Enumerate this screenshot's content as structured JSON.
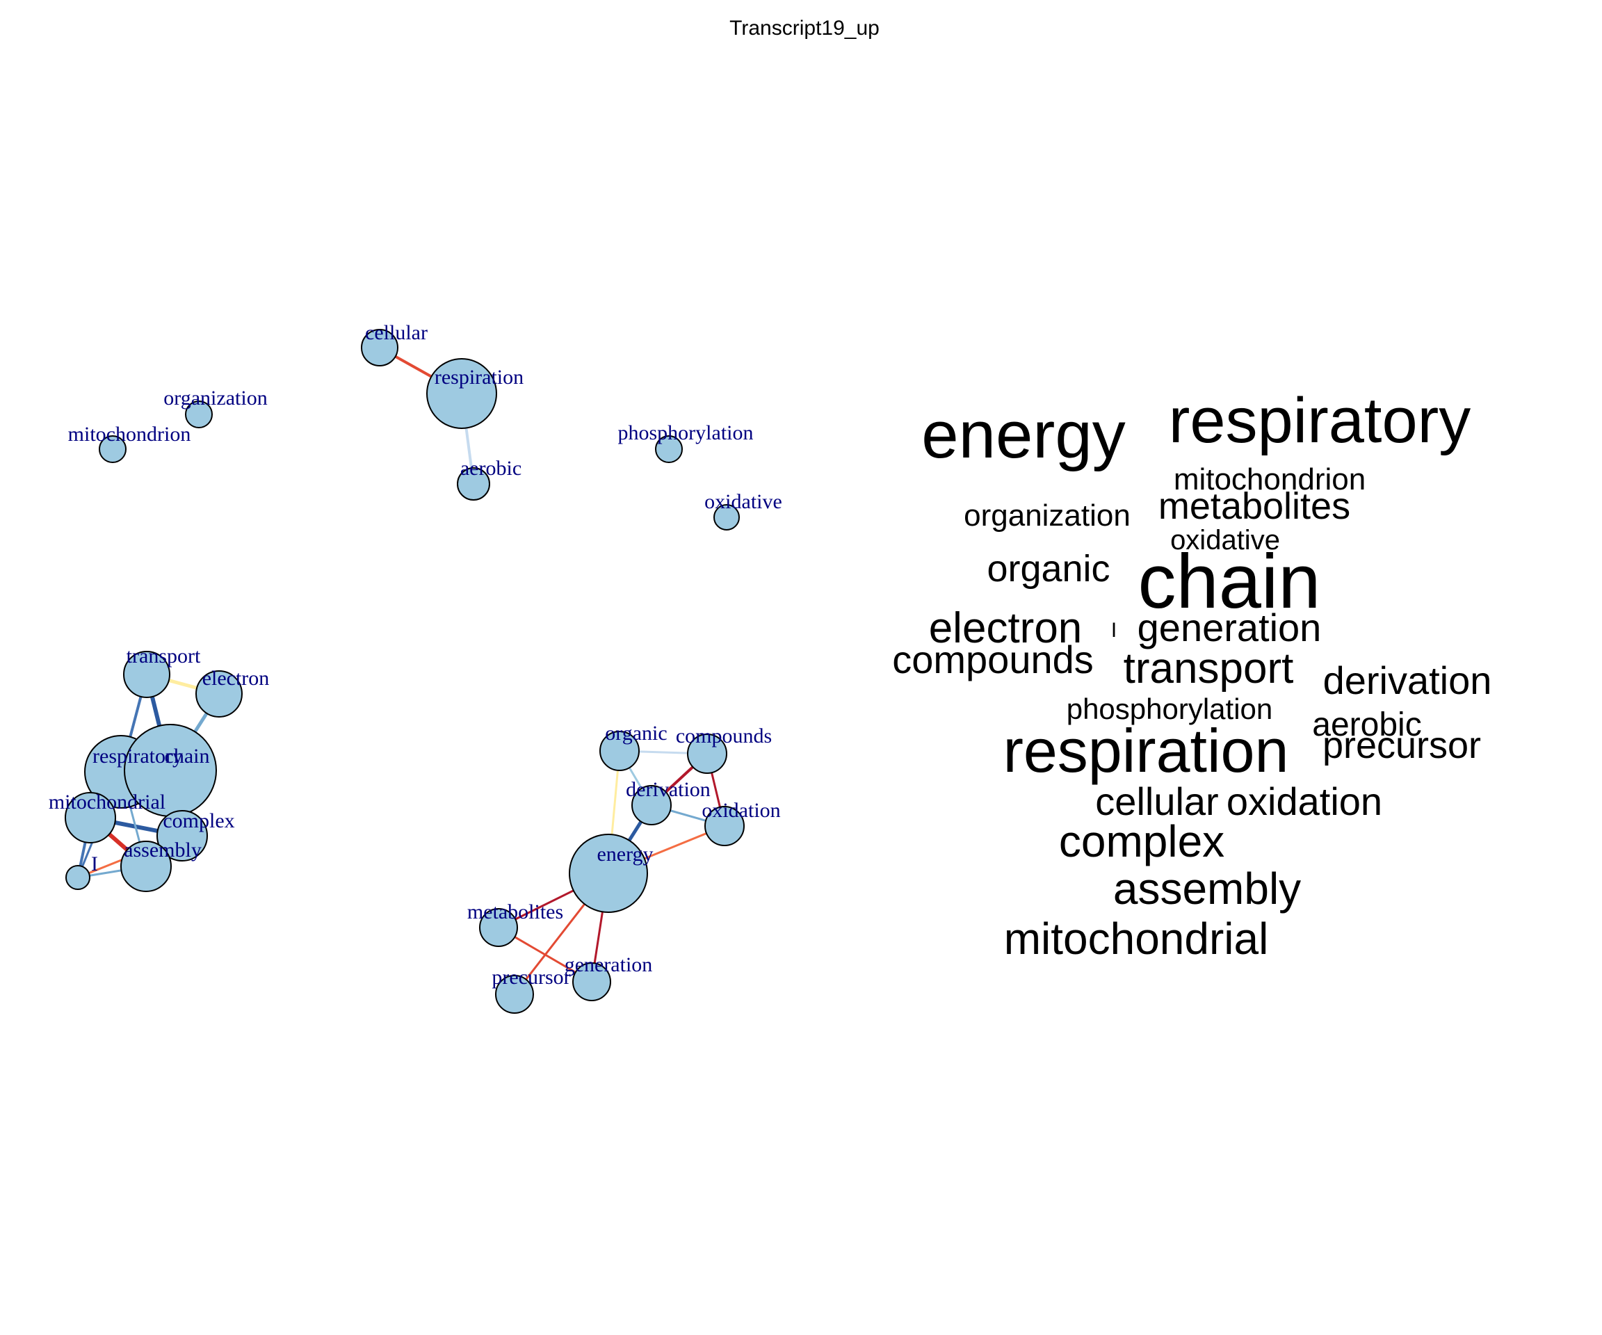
{
  "title": "Transcript19_up",
  "network": {
    "nodes": [
      {
        "id": "cellular",
        "label": "cellular",
        "weight": 1
      },
      {
        "id": "respiration",
        "label": "respiration",
        "weight": 4
      },
      {
        "id": "aerobic",
        "label": "aerobic",
        "weight": 1
      },
      {
        "id": "organization",
        "label": "organization",
        "weight": 1
      },
      {
        "id": "mitochondrion",
        "label": "mitochondrion",
        "weight": 1
      },
      {
        "id": "phosphorylation",
        "label": "phosphorylation",
        "weight": 0.8
      },
      {
        "id": "oxidative",
        "label": "oxidative",
        "weight": 0.8
      },
      {
        "id": "transport",
        "label": "transport",
        "weight": 2
      },
      {
        "id": "electron",
        "label": "electron",
        "weight": 2
      },
      {
        "id": "respiratory",
        "label": "respiratory",
        "weight": 4
      },
      {
        "id": "chain",
        "label": "chain",
        "weight": 6
      },
      {
        "id": "mitochondrial",
        "label": "mitochondrial",
        "weight": 2.5
      },
      {
        "id": "complex",
        "label": "complex",
        "weight": 2.5
      },
      {
        "id": "assembly",
        "label": "assembly",
        "weight": 2.5
      },
      {
        "id": "I",
        "label": "I",
        "weight": 0.6
      },
      {
        "id": "organic",
        "label": "organic",
        "weight": 1.5
      },
      {
        "id": "compounds",
        "label": "compounds",
        "weight": 1.5
      },
      {
        "id": "derivation",
        "label": "derivation",
        "weight": 1.5
      },
      {
        "id": "oxidation",
        "label": "oxidation",
        "weight": 1.5
      },
      {
        "id": "energy",
        "label": "energy",
        "weight": 5
      },
      {
        "id": "metabolites",
        "label": "metabolites",
        "weight": 1.5
      },
      {
        "id": "precursor",
        "label": "precursor",
        "weight": 1.5
      },
      {
        "id": "generation",
        "label": "generation",
        "weight": 1.5
      }
    ],
    "edges": [
      {
        "source": "cellular",
        "target": "respiration",
        "color": "#e34a33",
        "width": 4
      },
      {
        "source": "respiration",
        "target": "aerobic",
        "color": "#c6dbef",
        "width": 4
      },
      {
        "source": "transport",
        "target": "electron",
        "color": "#ffeda0",
        "width": 5
      },
      {
        "source": "transport",
        "target": "chain",
        "color": "#2c5aa0",
        "width": 6
      },
      {
        "source": "transport",
        "target": "respiratory",
        "color": "#4575b4",
        "width": 4
      },
      {
        "source": "electron",
        "target": "chain",
        "color": "#74a9cf",
        "width": 5
      },
      {
        "source": "respiratory",
        "target": "chain",
        "color": "#2c5aa0",
        "width": 5
      },
      {
        "source": "mitochondrial",
        "target": "respiratory",
        "color": "#4575b4",
        "width": 4
      },
      {
        "source": "mitochondrial",
        "target": "complex",
        "color": "#2c5aa0",
        "width": 6
      },
      {
        "source": "mitochondrial",
        "target": "assembly",
        "color": "#d73027",
        "width": 6
      },
      {
        "source": "mitochondrial",
        "target": "I",
        "color": "#4575b4",
        "width": 4
      },
      {
        "source": "complex",
        "target": "assembly",
        "color": "#2c5aa0",
        "width": 5
      },
      {
        "source": "complex",
        "target": "chain",
        "color": "#4575b4",
        "width": 4
      },
      {
        "source": "respiratory",
        "target": "I",
        "color": "#4575b4",
        "width": 3
      },
      {
        "source": "assembly",
        "target": "I",
        "color": "#74a9cf",
        "width": 3
      },
      {
        "source": "complex",
        "target": "I",
        "color": "#f46d43",
        "width": 3
      },
      {
        "source": "respiratory",
        "target": "assembly",
        "color": "#74a9cf",
        "width": 3
      },
      {
        "source": "organic",
        "target": "compounds",
        "color": "#c6dbef",
        "width": 3
      },
      {
        "source": "organic",
        "target": "derivation",
        "color": "#9ecae1",
        "width": 3
      },
      {
        "source": "organic",
        "target": "energy",
        "color": "#ffeda0",
        "width": 3
      },
      {
        "source": "compounds",
        "target": "derivation",
        "color": "#b2182b",
        "width": 4
      },
      {
        "source": "compounds",
        "target": "oxidation",
        "color": "#b2182b",
        "width": 3
      },
      {
        "source": "derivation",
        "target": "oxidation",
        "color": "#74a9cf",
        "width": 3
      },
      {
        "source": "derivation",
        "target": "energy",
        "color": "#2c5aa0",
        "width": 5
      },
      {
        "source": "oxidation",
        "target": "energy",
        "color": "#f46d43",
        "width": 3
      },
      {
        "source": "energy",
        "target": "metabolites",
        "color": "#b2182b",
        "width": 3
      },
      {
        "source": "energy",
        "target": "precursor",
        "color": "#e34a33",
        "width": 3
      },
      {
        "source": "energy",
        "target": "generation",
        "color": "#b2182b",
        "width": 3
      },
      {
        "source": "metabolites",
        "target": "generation",
        "color": "#e34a33",
        "width": 3
      }
    ]
  },
  "wordcloud": [
    {
      "text": "chain",
      "size": 110
    },
    {
      "text": "energy",
      "size": 96
    },
    {
      "text": "respiratory",
      "size": 92
    },
    {
      "text": "respiration",
      "size": 88
    },
    {
      "text": "complex",
      "size": 64
    },
    {
      "text": "assembly",
      "size": 64
    },
    {
      "text": "mitochondrial",
      "size": 64
    },
    {
      "text": "transport",
      "size": 62
    },
    {
      "text": "electron",
      "size": 62
    },
    {
      "text": "generation",
      "size": 56
    },
    {
      "text": "cellular",
      "size": 56
    },
    {
      "text": "oxidation",
      "size": 56
    },
    {
      "text": "derivation",
      "size": 56
    },
    {
      "text": "compounds",
      "size": 56
    },
    {
      "text": "organic",
      "size": 54
    },
    {
      "text": "metabolites",
      "size": 54
    },
    {
      "text": "precursor",
      "size": 54
    },
    {
      "text": "aerobic",
      "size": 48
    },
    {
      "text": "mitochondrion",
      "size": 44
    },
    {
      "text": "organization",
      "size": 44
    },
    {
      "text": "phosphorylation",
      "size": 42
    },
    {
      "text": "oxidative",
      "size": 40
    },
    {
      "text": "I",
      "size": 30
    }
  ]
}
